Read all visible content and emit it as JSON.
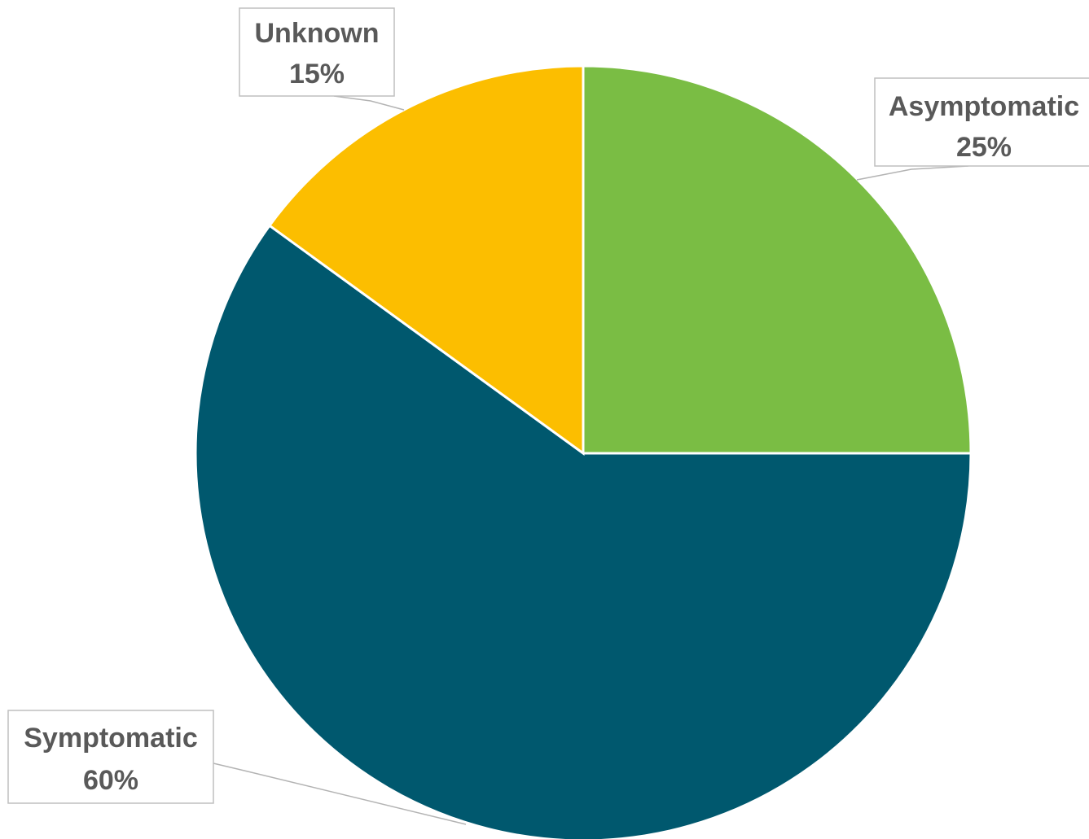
{
  "chart_data": {
    "type": "pie",
    "title": "",
    "slices": [
      {
        "label": "Asymptomatic",
        "value": 25,
        "value_label": "25%",
        "color": "#7abd44"
      },
      {
        "label": "Symptomatic",
        "value": 60,
        "value_label": "60%",
        "color": "#00586e"
      },
      {
        "label": "Unknown",
        "value": 15,
        "value_label": "15%",
        "color": "#fcbe00"
      }
    ],
    "start_angle": "12 o'clock",
    "direction": "clockwise",
    "legend": "none",
    "data_labels": "callouts with leader lines"
  }
}
